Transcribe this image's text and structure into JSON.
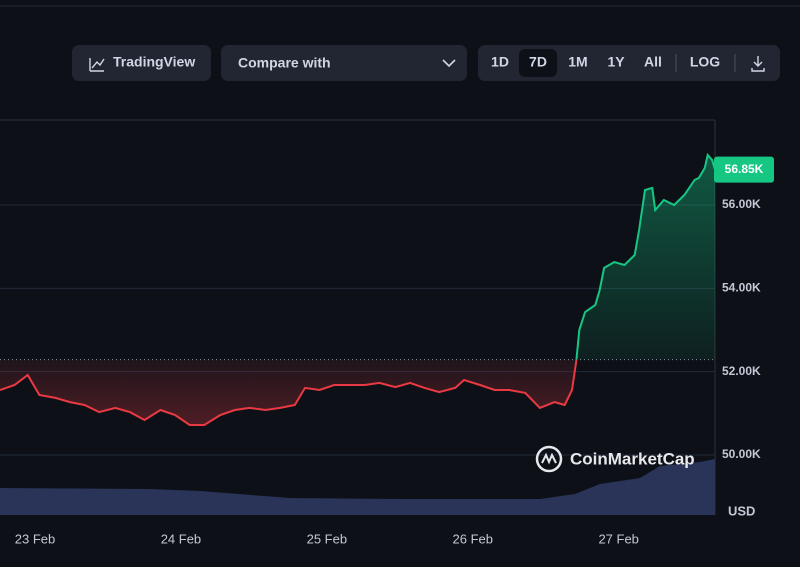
{
  "toolbar": {
    "tradingview": "TradingView",
    "compare": "Compare with",
    "ranges": [
      "1D",
      "7D",
      "1M",
      "1Y",
      "All"
    ],
    "active_range": "7D",
    "log": "LOG"
  },
  "chart_data": {
    "type": "line",
    "x": [
      22.76,
      22.86,
      22.95,
      23.03,
      23.14,
      23.24,
      23.34,
      23.44,
      23.55,
      23.65,
      23.75,
      23.86,
      23.96,
      24.06,
      24.16,
      24.27,
      24.37,
      24.47,
      24.58,
      24.68,
      24.78,
      24.85,
      24.95,
      25.05,
      25.16,
      25.26,
      25.36,
      25.47,
      25.57,
      25.67,
      25.77,
      25.88,
      25.94,
      26.05,
      26.15,
      26.25,
      26.36,
      26.46,
      26.56,
      26.63,
      26.68,
      26.71,
      26.73,
      26.77,
      26.84,
      26.87,
      26.9,
      26.97,
      27.04,
      27.11,
      27.14,
      27.18,
      27.23,
      27.25,
      27.31,
      27.38,
      27.45,
      27.52,
      27.55,
      27.59,
      27.61,
      27.64,
      27.66
    ],
    "values": [
      51560,
      51680,
      51920,
      51440,
      51370,
      51270,
      51200,
      51030,
      51130,
      51030,
      50840,
      51080,
      50960,
      50720,
      50720,
      50960,
      51080,
      51130,
      51080,
      51130,
      51200,
      51610,
      51560,
      51680,
      51680,
      51680,
      51730,
      51630,
      51730,
      51610,
      51510,
      51610,
      51800,
      51680,
      51560,
      51560,
      51490,
      51130,
      51270,
      51200,
      51560,
      52280,
      53000,
      53430,
      53600,
      53960,
      54490,
      54630,
      54560,
      54800,
      55400,
      56360,
      56410,
      55880,
      56120,
      56000,
      56240,
      56600,
      56650,
      56890,
      57200,
      57080,
      56850
    ],
    "baseline": 52290,
    "up_color": "#16c784",
    "down_color": "#ea3943",
    "ylim": [
      48560,
      58040
    ],
    "yticks": [
      {
        "value": 50000,
        "label": "50.00K"
      },
      {
        "value": 52000,
        "label": "52.00K"
      },
      {
        "value": 54000,
        "label": "54.00K"
      },
      {
        "value": 56000,
        "label": "56.00K"
      }
    ],
    "xlim": [
      22.76,
      27.66
    ],
    "xticks": [
      {
        "value": 23,
        "label": "23 Feb"
      },
      {
        "value": 24,
        "label": "24 Feb"
      },
      {
        "value": 25,
        "label": "25 Feb"
      },
      {
        "value": 26,
        "label": "26 Feb"
      },
      {
        "value": 27,
        "label": "27 Feb"
      }
    ],
    "last_label": "56.85K",
    "unit_label": "USD",
    "watermark": "CoinMarketCap",
    "grid": true
  }
}
